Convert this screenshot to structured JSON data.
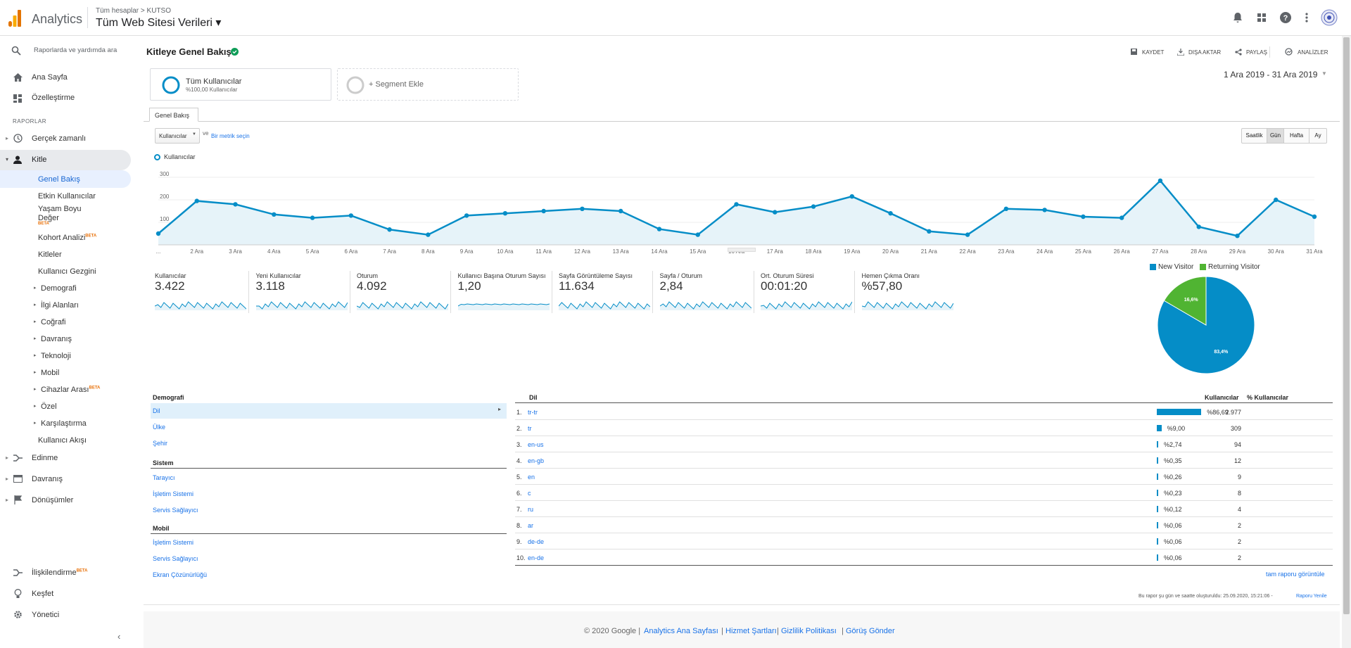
{
  "top": {
    "app_name": "Analytics",
    "crumb": "Tüm hesaplar > KUTSO",
    "property": "Tüm Web Sitesi Verileri ▾"
  },
  "sidebar": {
    "search": "Raporlarda ve yardımda ara",
    "home": "Ana Sayfa",
    "custom": "Özelleştirme",
    "reports_header": "RAPORLAR",
    "realtime": "Gerçek zamanlı",
    "audience": "Kitle",
    "overview": "Genel Bakış",
    "active_users": "Etkin Kullanıcılar",
    "lifetime": "Yaşam Boyu Değer",
    "beta": "BETA",
    "cohort": "Kohort Analizi",
    "audiences": "Kitleler",
    "user_explorer": "Kullanıcı Gezgini",
    "demographics": "Demografi",
    "interests": "İlgi Alanları",
    "geo": "Coğrafi",
    "behavior_sub": "Davranış",
    "technology": "Teknoloji",
    "mobile": "Mobil",
    "cross_device": "Cihazlar Arası",
    "custom_sub": "Özel",
    "benchmark": "Karşılaştırma",
    "user_flow": "Kullanıcı Akışı",
    "acquisition": "Edinme",
    "behavior": "Davranış",
    "conversions": "Dönüşümler",
    "attribution": "İlişkilendirme",
    "discover": "Keşfet",
    "admin": "Yönetici"
  },
  "header": {
    "title": "Kitleye Genel Bakış",
    "save": "KAYDET",
    "export": "DIŞA AKTAR",
    "share": "PAYLAŞ",
    "insights": "ANALİZLER"
  },
  "segments": {
    "all_users": "Tüm Kullanıcılar",
    "all_users_sub": "%100,00 Kullanıcılar",
    "add": "+ Segment Ekle",
    "date_range": "1 Ara 2019 - 31 Ara 2019"
  },
  "tab": "Genel Bakış",
  "metric_select": "Kullanıcılar",
  "vs": "ve",
  "pick_metric": "Bir metrik seçin",
  "granularity": [
    "Saatlik",
    "Gün",
    "Hafta",
    "Ay"
  ],
  "legend_label": "Kullanıcılar",
  "chart_data": {
    "type": "line",
    "series": [
      {
        "name": "Kullanıcılar",
        "values": [
          50,
          195,
          180,
          135,
          120,
          130,
          68,
          45,
          130,
          140,
          150,
          160,
          150,
          70,
          45,
          180,
          145,
          170,
          215,
          140,
          60,
          45,
          160,
          155,
          125,
          120,
          285,
          80,
          40,
          200,
          125
        ]
      }
    ],
    "x": [
      "1 Ara",
      "2 Ara",
      "3 Ara",
      "4 Ara",
      "5 Ara",
      "6 Ara",
      "7 Ara",
      "8 Ara",
      "9 Ara",
      "10 Ara",
      "11 Ara",
      "12 Ara",
      "13 Ara",
      "14 Ara",
      "15 Ara",
      "16 Ara",
      "17 Ara",
      "18 Ara",
      "19 Ara",
      "20 Ara",
      "21 Ara",
      "22 Ara",
      "23 Ara",
      "24 Ara",
      "25 Ara",
      "26 Ara",
      "27 Ara",
      "28 Ara",
      "29 Ara",
      "30 Ara",
      "31 Ara"
    ],
    "x_tick_labels": [
      "...",
      "2 Ara",
      "3 Ara",
      "4 Ara",
      "5 Ara",
      "6 Ara",
      "7 Ara",
      "8 Ara",
      "9 Ara",
      "10 Ara",
      "11 Ara",
      "12 Ara",
      "13 Ara",
      "14 Ara",
      "15 Ara",
      "16 Ara",
      "17 Ara",
      "18 Ara",
      "19 Ara",
      "20 Ara",
      "21 Ara",
      "22 Ara",
      "23 Ara",
      "24 Ara",
      "25 Ara",
      "26 Ara",
      "27 Ara",
      "28 Ara",
      "29 Ara",
      "30 Ara",
      "31 Ara"
    ],
    "y_ticks": [
      "300",
      "200",
      "100"
    ],
    "ylim": [
      0,
      300
    ],
    "color": "#058dc7"
  },
  "metrics": [
    {
      "label": "Kullanıcılar",
      "value": "3.422"
    },
    {
      "label": "Yeni Kullanıcılar",
      "value": "3.118"
    },
    {
      "label": "Oturum",
      "value": "4.092"
    },
    {
      "label": "Kullanıcı Başına Oturum Sayısı",
      "value": "1,20"
    },
    {
      "label": "Sayfa Görüntüleme Sayısı",
      "value": "11.634"
    },
    {
      "label": "Sayfa / Oturum",
      "value": "2,84"
    },
    {
      "label": "Ort. Oturum Süresi",
      "value": "00:01:20"
    },
    {
      "label": "Hemen Çıkma Oranı",
      "value": "%57,80"
    }
  ],
  "pie": {
    "legend": [
      "New Visitor",
      "Returning Visitor"
    ],
    "labels": [
      "83,4%",
      "16,6%"
    ],
    "values": [
      83.4,
      16.6
    ],
    "colors": [
      "#058dc7",
      "#50b432"
    ]
  },
  "demographics": {
    "header": "Demografi",
    "items": [
      "Dil",
      "Ülke",
      "Şehir"
    ],
    "system_header": "Sistem",
    "system": [
      "Tarayıcı",
      "İşletim Sistemi",
      "Servis Sağlayıcı"
    ],
    "mobile_header": "Mobil",
    "mobile": [
      "İşletim Sistemi",
      "Servis Sağlayıcı",
      "Ekran Çözünürlüğü"
    ]
  },
  "table": {
    "col1": "Dil",
    "col2": "Kullanıcılar",
    "col3": "% Kullanıcılar",
    "rows": [
      {
        "n": "1.",
        "lang": "tr-tr",
        "users": "2.977",
        "pct": "%86,69",
        "frac": 0.8669
      },
      {
        "n": "2.",
        "lang": "tr",
        "users": "309",
        "pct": "%9,00",
        "frac": 0.09
      },
      {
        "n": "3.",
        "lang": "en-us",
        "users": "94",
        "pct": "%2,74",
        "frac": 0.0274
      },
      {
        "n": "4.",
        "lang": "en-gb",
        "users": "12",
        "pct": "%0,35",
        "frac": 0.0035
      },
      {
        "n": "5.",
        "lang": "en",
        "users": "9",
        "pct": "%0,26",
        "frac": 0.0026
      },
      {
        "n": "6.",
        "lang": "c",
        "users": "8",
        "pct": "%0,23",
        "frac": 0.0023
      },
      {
        "n": "7.",
        "lang": "ru",
        "users": "4",
        "pct": "%0,12",
        "frac": 0.0012
      },
      {
        "n": "8.",
        "lang": "ar",
        "users": "2",
        "pct": "%0,06",
        "frac": 0.0006
      },
      {
        "n": "9.",
        "lang": "de-de",
        "users": "2",
        "pct": "%0,06",
        "frac": 0.0006
      },
      {
        "n": "10.",
        "lang": "en-de",
        "users": "2",
        "pct": "%0,06",
        "frac": 0.0006
      }
    ],
    "full_report": "tam raporu görüntüle"
  },
  "report_note": "Bu rapor şu gün ve saatte oluşturuldu: 25.09.2020, 15:21:06 - ",
  "refresh": "Raporu Yenile",
  "footer": {
    "copyright": "© 2020 Google |",
    "links": [
      "Analytics Ana Sayfası",
      "Hizmet Şartları",
      "Gizlilik Politikası",
      "Görüş Gönder"
    ]
  }
}
